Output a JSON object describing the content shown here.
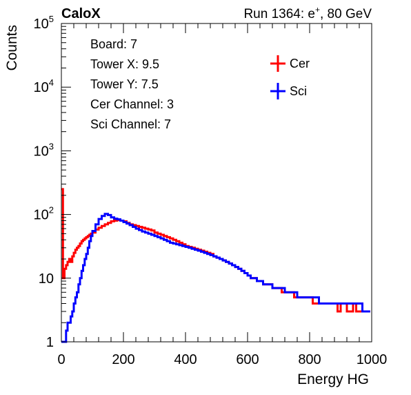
{
  "chart_data": {
    "type": "line",
    "title_left": "CaloX",
    "title_right": {
      "prefix": "Run 1364: e",
      "sup": "+",
      "suffix": ", 80 GeV"
    },
    "xlabel": "Energy HG",
    "ylabel": "Counts",
    "xlim": [
      0,
      1000
    ],
    "ylim": [
      1,
      100000
    ],
    "yscale": "log",
    "xticks": [
      {
        "value": 0,
        "label": "0"
      },
      {
        "value": 200,
        "label": "200"
      },
      {
        "value": 400,
        "label": "400"
      },
      {
        "value": 600,
        "label": "600"
      },
      {
        "value": 800,
        "label": "800"
      },
      {
        "value": 1000,
        "label": "1000"
      }
    ],
    "yticks": [
      {
        "value": 1,
        "label": "1"
      },
      {
        "value": 10,
        "label": "10"
      },
      {
        "value": 100,
        "base": "10",
        "exp": "2"
      },
      {
        "value": 1000,
        "base": "10",
        "exp": "3"
      },
      {
        "value": 10000,
        "base": "10",
        "exp": "4"
      },
      {
        "value": 100000,
        "base": "10",
        "exp": "5"
      }
    ],
    "info_box": [
      "Board: 7",
      "Tower X: 9.5",
      "Tower Y: 7.5",
      "Cer Channel: 3",
      "Sci Channel: 7"
    ],
    "legend_position": "top-right",
    "series": [
      {
        "name": "Cer",
        "color": "#ff0000",
        "x": [
          0,
          5,
          10,
          15,
          20,
          25,
          30,
          35,
          40,
          45,
          50,
          55,
          60,
          65,
          70,
          75,
          80,
          85,
          90,
          95,
          100,
          110,
          120,
          130,
          140,
          150,
          160,
          170,
          180,
          190,
          200,
          210,
          220,
          230,
          240,
          250,
          260,
          270,
          280,
          290,
          300,
          310,
          320,
          330,
          340,
          350,
          360,
          370,
          380,
          390,
          400,
          410,
          420,
          430,
          440,
          450,
          460,
          470,
          480,
          490,
          500,
          510,
          520,
          530,
          540,
          550,
          560,
          570,
          580,
          590,
          600,
          610,
          620,
          630,
          640,
          650,
          660,
          670,
          680,
          690,
          700,
          710,
          720,
          730,
          740,
          750,
          760,
          770,
          780,
          790,
          800,
          810,
          820,
          830,
          840,
          850,
          860,
          870,
          880,
          890,
          900,
          910,
          920,
          930,
          940,
          950,
          960,
          970,
          980,
          990
        ],
        "values": [
          250,
          10,
          14,
          16,
          18,
          20,
          18,
          22,
          25,
          28,
          30,
          32,
          35,
          38,
          40,
          42,
          44,
          46,
          48,
          50,
          52,
          58,
          62,
          66,
          70,
          74,
          78,
          80,
          82,
          80,
          78,
          74,
          70,
          68,
          66,
          64,
          62,
          60,
          58,
          56,
          52,
          50,
          48,
          46,
          44,
          42,
          40,
          38,
          36,
          34,
          32,
          31,
          30,
          29,
          28,
          27,
          26,
          25,
          24,
          22,
          21,
          20,
          19,
          18,
          17,
          16,
          15,
          14,
          13,
          12,
          11,
          10,
          10,
          9,
          9,
          8,
          8,
          8,
          7,
          7,
          7,
          6,
          6,
          6,
          6,
          5,
          5,
          5,
          5,
          5,
          5,
          4,
          4,
          4,
          4,
          4,
          4,
          4,
          4,
          3,
          4,
          4,
          3,
          3,
          4,
          3,
          3,
          3,
          3,
          3
        ]
      },
      {
        "name": "Sci",
        "color": "#0000ff",
        "x": [
          0,
          5,
          10,
          15,
          20,
          25,
          30,
          35,
          40,
          45,
          50,
          55,
          60,
          65,
          70,
          75,
          80,
          85,
          90,
          95,
          100,
          110,
          120,
          130,
          140,
          150,
          160,
          170,
          180,
          190,
          200,
          210,
          220,
          230,
          240,
          250,
          260,
          270,
          280,
          290,
          300,
          310,
          320,
          330,
          340,
          350,
          360,
          370,
          380,
          390,
          400,
          410,
          420,
          430,
          440,
          450,
          460,
          470,
          480,
          490,
          500,
          510,
          520,
          530,
          540,
          550,
          560,
          570,
          580,
          590,
          600,
          610,
          620,
          630,
          640,
          650,
          660,
          670,
          680,
          690,
          700,
          710,
          720,
          730,
          740,
          750,
          760,
          770,
          780,
          790,
          800,
          810,
          820,
          830,
          840,
          850,
          860,
          870,
          880,
          890,
          900,
          910,
          920,
          930,
          940,
          950,
          960,
          970,
          980,
          990
        ],
        "values": [
          1,
          1,
          1,
          1.5,
          2,
          2,
          2.5,
          3,
          4,
          5,
          6,
          8,
          10,
          13,
          16,
          20,
          24,
          30,
          38,
          46,
          55,
          70,
          85,
          95,
          102,
          98,
          90,
          86,
          84,
          80,
          76,
          72,
          68,
          64,
          60,
          57,
          54,
          52,
          50,
          48,
          46,
          44,
          42,
          40,
          38,
          36,
          35,
          34,
          33,
          32,
          31,
          30,
          29,
          28,
          27,
          26,
          25,
          24,
          23,
          22,
          21,
          20,
          19,
          18,
          17,
          16,
          15,
          14,
          13,
          12,
          11,
          10,
          10,
          9,
          9,
          8,
          8,
          8,
          7,
          7,
          7,
          7,
          6,
          6,
          6,
          6,
          5,
          5,
          5,
          5,
          5,
          5,
          5,
          4,
          4,
          4,
          4,
          4,
          4,
          4,
          4,
          4,
          4,
          4,
          4,
          4,
          4,
          3,
          3,
          3
        ]
      }
    ]
  }
}
